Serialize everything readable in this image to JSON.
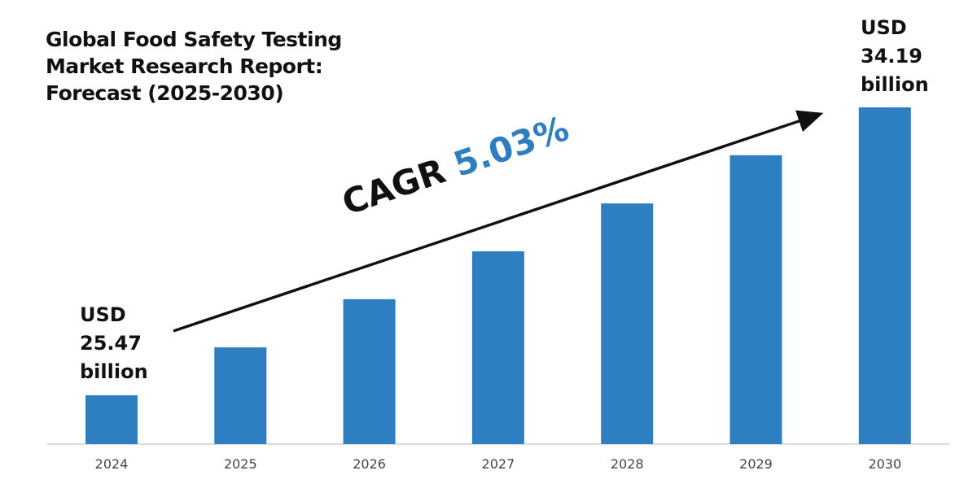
{
  "chart_data": {
    "type": "bar",
    "title": "Global Food Safety Testing\nMarket Research Report:\nForecast (2025-2030)",
    "categories": [
      "2024",
      "2025",
      "2026",
      "2027",
      "2028",
      "2029",
      "2030"
    ],
    "values": [
      25.47,
      26.92,
      28.38,
      29.83,
      31.28,
      32.74,
      34.19
    ],
    "unit": "USD billion",
    "xlabel": "",
    "ylabel": "",
    "grid": false,
    "bar_color": "#2e7fc1",
    "annotations": {
      "start_label": [
        "USD",
        "25.47",
        "billion"
      ],
      "end_label": [
        "USD",
        "34.19",
        "billion"
      ],
      "cagr_prefix": "CAGR",
      "cagr_value": "5.03%"
    }
  }
}
